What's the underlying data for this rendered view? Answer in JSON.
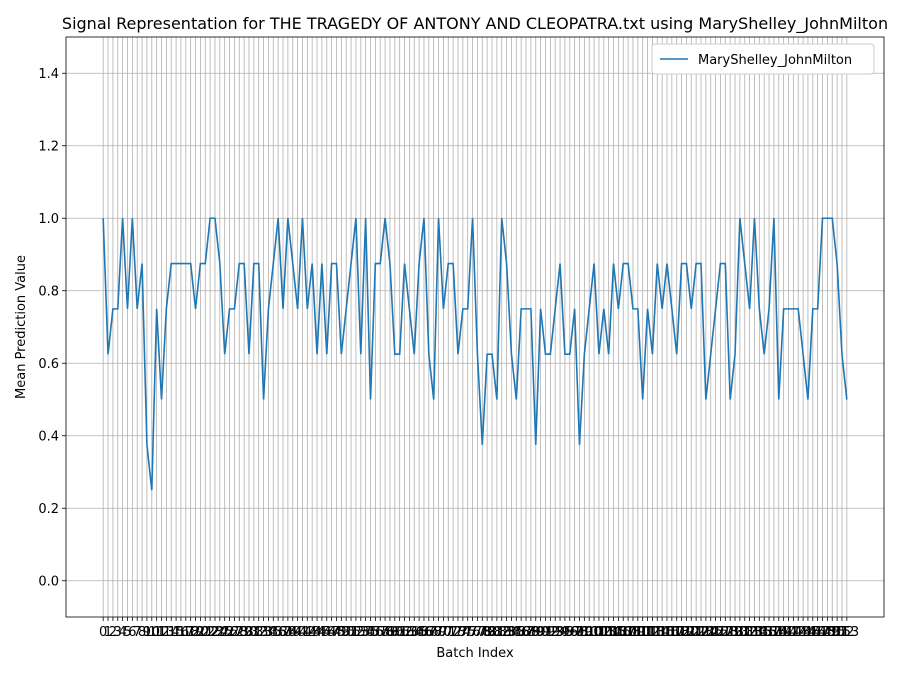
{
  "chart_data": {
    "type": "line",
    "title": "Signal Representation for THE TRAGEDY OF ANTONY AND CLEOPATRA.txt using MaryShelley_JohnMilton",
    "x_label": "Batch Index",
    "y_label": "Mean Prediction Value",
    "x": [
      0,
      1,
      2,
      3,
      4,
      5,
      6,
      7,
      8,
      9,
      10,
      11,
      12,
      13,
      14,
      15,
      16,
      17,
      18,
      19,
      20,
      21,
      22,
      23,
      24,
      25,
      26,
      27,
      28,
      29,
      30,
      31,
      32,
      33,
      34,
      35,
      36,
      37,
      38,
      39,
      40,
      41,
      42,
      43,
      44,
      45,
      46,
      47,
      48,
      49,
      50,
      51,
      52,
      53,
      54,
      55,
      56,
      57,
      58,
      59,
      60,
      61,
      62,
      63,
      64,
      65,
      66,
      67,
      68,
      69,
      70,
      71,
      72,
      73,
      74,
      75,
      76,
      77,
      78,
      79,
      80,
      81,
      82,
      83,
      84,
      85,
      86,
      87,
      88,
      89,
      90,
      91,
      92,
      93,
      94,
      95,
      96,
      97,
      98,
      99,
      100,
      101,
      102,
      103,
      104,
      105,
      106,
      107,
      108,
      109,
      110,
      111,
      112,
      113,
      114,
      115,
      116,
      117,
      118,
      119,
      120,
      121,
      122,
      123,
      124,
      125,
      126,
      127,
      128,
      129,
      130,
      131,
      132,
      133,
      134,
      135,
      136,
      137,
      138,
      139,
      140,
      141,
      142,
      143,
      144,
      145,
      146,
      147,
      148,
      149,
      150,
      151,
      152,
      153
    ],
    "series": [
      {
        "name": "MaryShelley_JohnMilton",
        "color": "#1f77b4",
        "values": [
          1.0,
          0.625,
          0.75,
          0.75,
          1.0,
          0.75,
          1.0,
          0.75,
          0.875,
          0.375,
          0.25,
          0.75,
          0.5,
          0.75,
          0.875,
          0.875,
          0.875,
          0.875,
          0.875,
          0.75,
          0.875,
          0.875,
          1.0,
          1.0,
          0.875,
          0.625,
          0.75,
          0.75,
          0.875,
          0.875,
          0.625,
          0.875,
          0.875,
          0.5,
          0.75,
          0.875,
          1.0,
          0.75,
          1.0,
          0.875,
          0.75,
          1.0,
          0.75,
          0.875,
          0.625,
          0.875,
          0.625,
          0.875,
          0.875,
          0.625,
          0.75,
          0.875,
          1.0,
          0.625,
          1.0,
          0.5,
          0.875,
          0.875,
          1.0,
          0.875,
          0.625,
          0.625,
          0.875,
          0.75,
          0.625,
          0.875,
          1.0,
          0.625,
          0.5,
          1.0,
          0.75,
          0.875,
          0.875,
          0.625,
          0.75,
          0.75,
          1.0,
          0.625,
          0.375,
          0.625,
          0.625,
          0.5,
          1.0,
          0.875,
          0.625,
          0.5,
          0.75,
          0.75,
          0.75,
          0.375,
          0.75,
          0.625,
          0.625,
          0.75,
          0.875,
          0.625,
          0.625,
          0.75,
          0.375,
          0.625,
          0.75,
          0.875,
          0.625,
          0.75,
          0.625,
          0.875,
          0.75,
          0.875,
          0.875,
          0.75,
          0.75,
          0.5,
          0.75,
          0.625,
          0.875,
          0.75,
          0.875,
          0.75,
          0.625,
          0.875,
          0.875,
          0.75,
          0.875,
          0.875,
          0.5,
          0.625,
          0.75,
          0.875,
          0.875,
          0.5,
          0.625,
          1.0,
          0.875,
          0.75,
          1.0,
          0.75,
          0.625,
          0.75,
          1.0,
          0.5,
          0.75,
          0.75,
          0.75,
          0.75,
          0.625,
          0.5,
          0.75,
          0.75,
          1.0,
          1.0,
          1.0,
          0.875,
          0.625,
          0.5
        ]
      }
    ],
    "xlim": [
      -7.65,
      160.65
    ],
    "xticks": [
      0,
      1,
      2,
      3,
      4,
      5,
      6,
      7,
      8,
      9,
      10,
      11,
      12,
      13,
      14,
      15,
      16,
      17,
      18,
      19,
      20,
      21,
      22,
      23,
      24,
      25,
      26,
      27,
      28,
      29,
      30,
      31,
      32,
      33,
      34,
      35,
      36,
      37,
      38,
      39,
      40,
      41,
      42,
      43,
      44,
      45,
      46,
      47,
      48,
      49,
      50,
      51,
      52,
      53,
      54,
      55,
      56,
      57,
      58,
      59,
      60,
      61,
      62,
      63,
      64,
      65,
      66,
      67,
      68,
      69,
      70,
      71,
      72,
      73,
      74,
      75,
      76,
      77,
      78,
      79,
      80,
      81,
      82,
      83,
      84,
      85,
      86,
      87,
      88,
      89,
      90,
      91,
      92,
      93,
      94,
      95,
      96,
      97,
      98,
      99,
      100,
      101,
      102,
      103,
      104,
      105,
      106,
      107,
      108,
      109,
      110,
      111,
      112,
      113,
      114,
      115,
      116,
      117,
      118,
      119,
      120,
      121,
      122,
      123,
      124,
      125,
      126,
      127,
      128,
      129,
      130,
      131,
      132,
      133,
      134,
      135,
      136,
      137,
      138,
      139,
      140,
      141,
      142,
      143,
      144,
      145,
      146,
      147,
      148,
      149,
      150,
      151,
      152,
      153
    ],
    "ylim": [
      -0.1,
      1.5
    ],
    "yticks": [
      {
        "value": 0,
        "label": "0.0"
      },
      {
        "value": 0.2,
        "label": "0.2"
      },
      {
        "value": 0.4,
        "label": "0.4"
      },
      {
        "value": 0.6,
        "label": "0.6"
      },
      {
        "value": 0.8,
        "label": "0.8"
      },
      {
        "value": 1,
        "label": "1.0"
      },
      {
        "value": 1.2,
        "label": "1.2"
      },
      {
        "value": 1.4,
        "label": "1.4"
      }
    ],
    "grid": true,
    "legend": "upper right"
  }
}
